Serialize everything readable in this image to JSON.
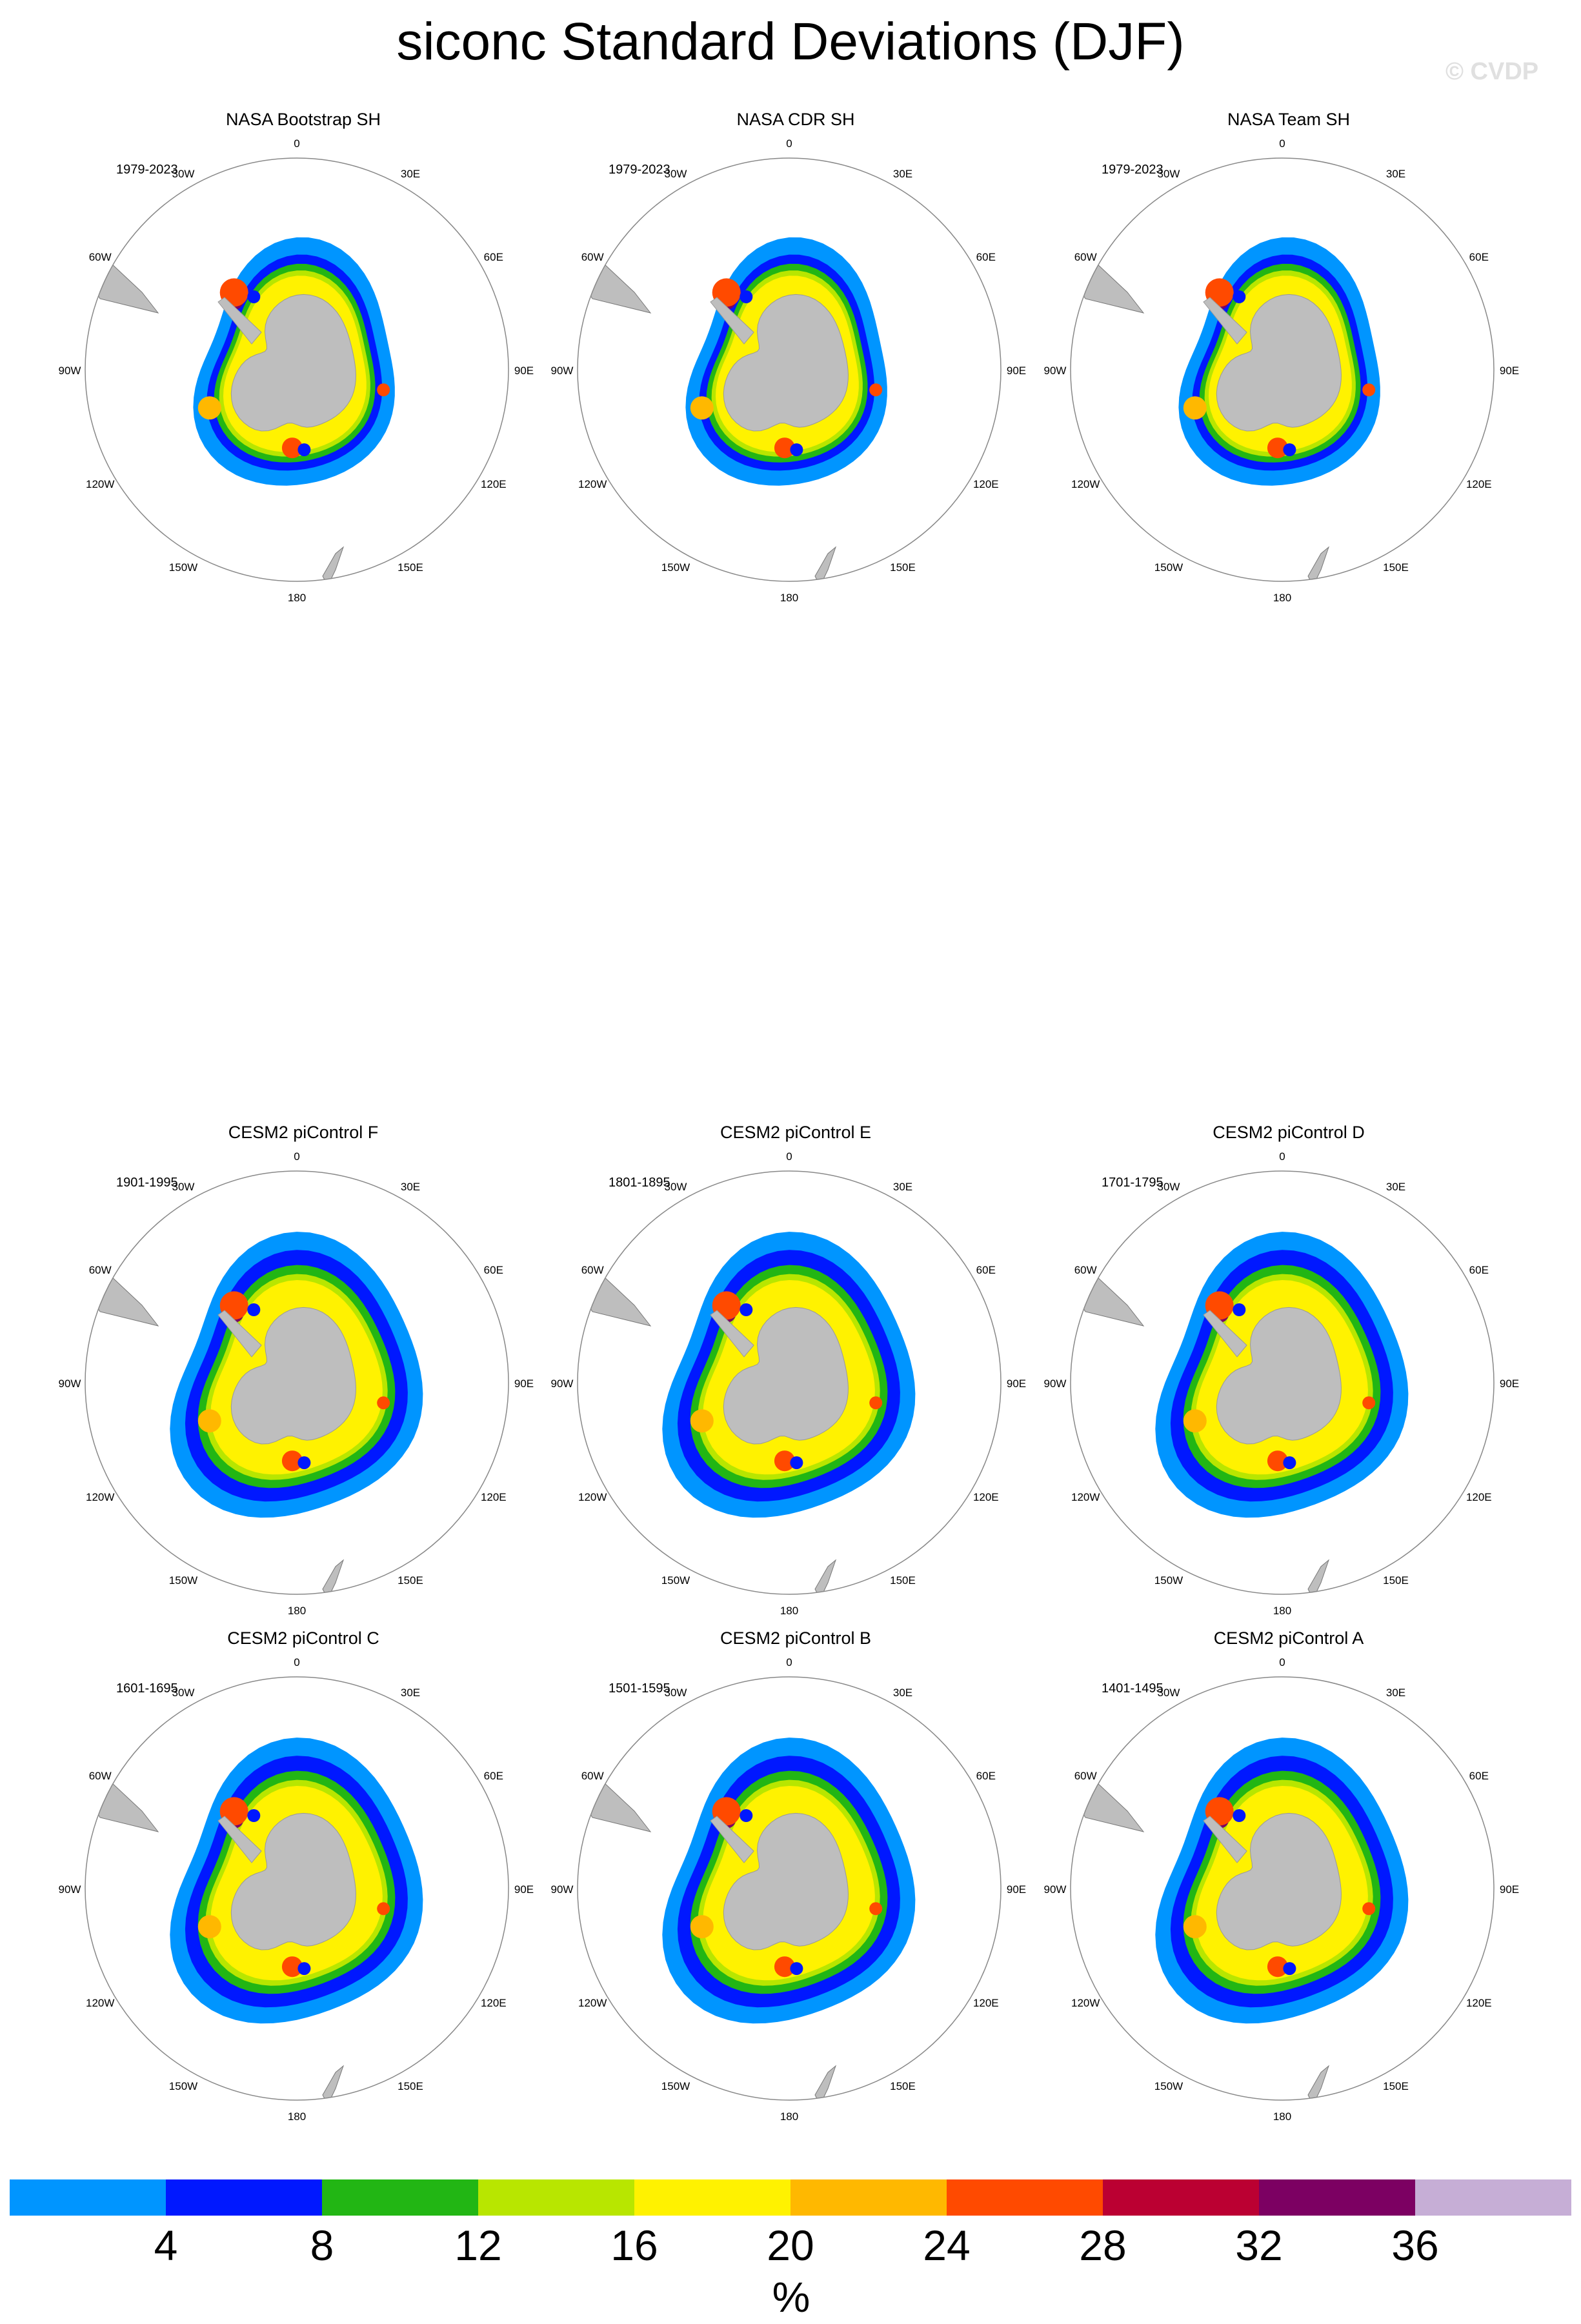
{
  "figure": {
    "title": "siconc Standard Deviations (DJF)",
    "watermark": "© CVDP"
  },
  "chart_data": {
    "type": "heatmap",
    "projection": "south-polar-stereographic",
    "season": "DJF",
    "variable": "siconc",
    "lon_labels": [
      "0",
      "30E",
      "60E",
      "90E",
      "120E",
      "150E",
      "180",
      "150W",
      "120W",
      "90W",
      "60W",
      "30W"
    ],
    "panels": [
      {
        "title": "NASA Bootstrap SH",
        "years": "1979-2023",
        "kind": "obs"
      },
      {
        "title": "NASA CDR SH",
        "years": "1979-2023",
        "kind": "obs"
      },
      {
        "title": "NASA Team SH",
        "years": "1979-2023",
        "kind": "obs"
      },
      {
        "title": "CESM2 piControl F",
        "years": "1901-1995",
        "kind": "model"
      },
      {
        "title": "CESM2 piControl E",
        "years": "1801-1895",
        "kind": "model"
      },
      {
        "title": "CESM2 piControl D",
        "years": "1701-1795",
        "kind": "model"
      },
      {
        "title": "CESM2 piControl C",
        "years": "1601-1695",
        "kind": "model"
      },
      {
        "title": "CESM2 piControl B",
        "years": "1501-1595",
        "kind": "model"
      },
      {
        "title": "CESM2 piControl A",
        "years": "1401-1495",
        "kind": "model"
      }
    ],
    "colorbar": {
      "levels": [
        4,
        8,
        12,
        16,
        20,
        24,
        28,
        32,
        36
      ],
      "tick_labels": [
        "4",
        "8",
        "12",
        "16",
        "20",
        "24",
        "28",
        "32",
        "36"
      ],
      "colors": [
        "#0095ff",
        "#0018ff",
        "#22b614",
        "#b8e600",
        "#fff200",
        "#ffb800",
        "#ff4a00",
        "#bb0032",
        "#7c0062",
        "#c6aed6"
      ],
      "units": "%"
    },
    "land_color": "#bebebe"
  }
}
